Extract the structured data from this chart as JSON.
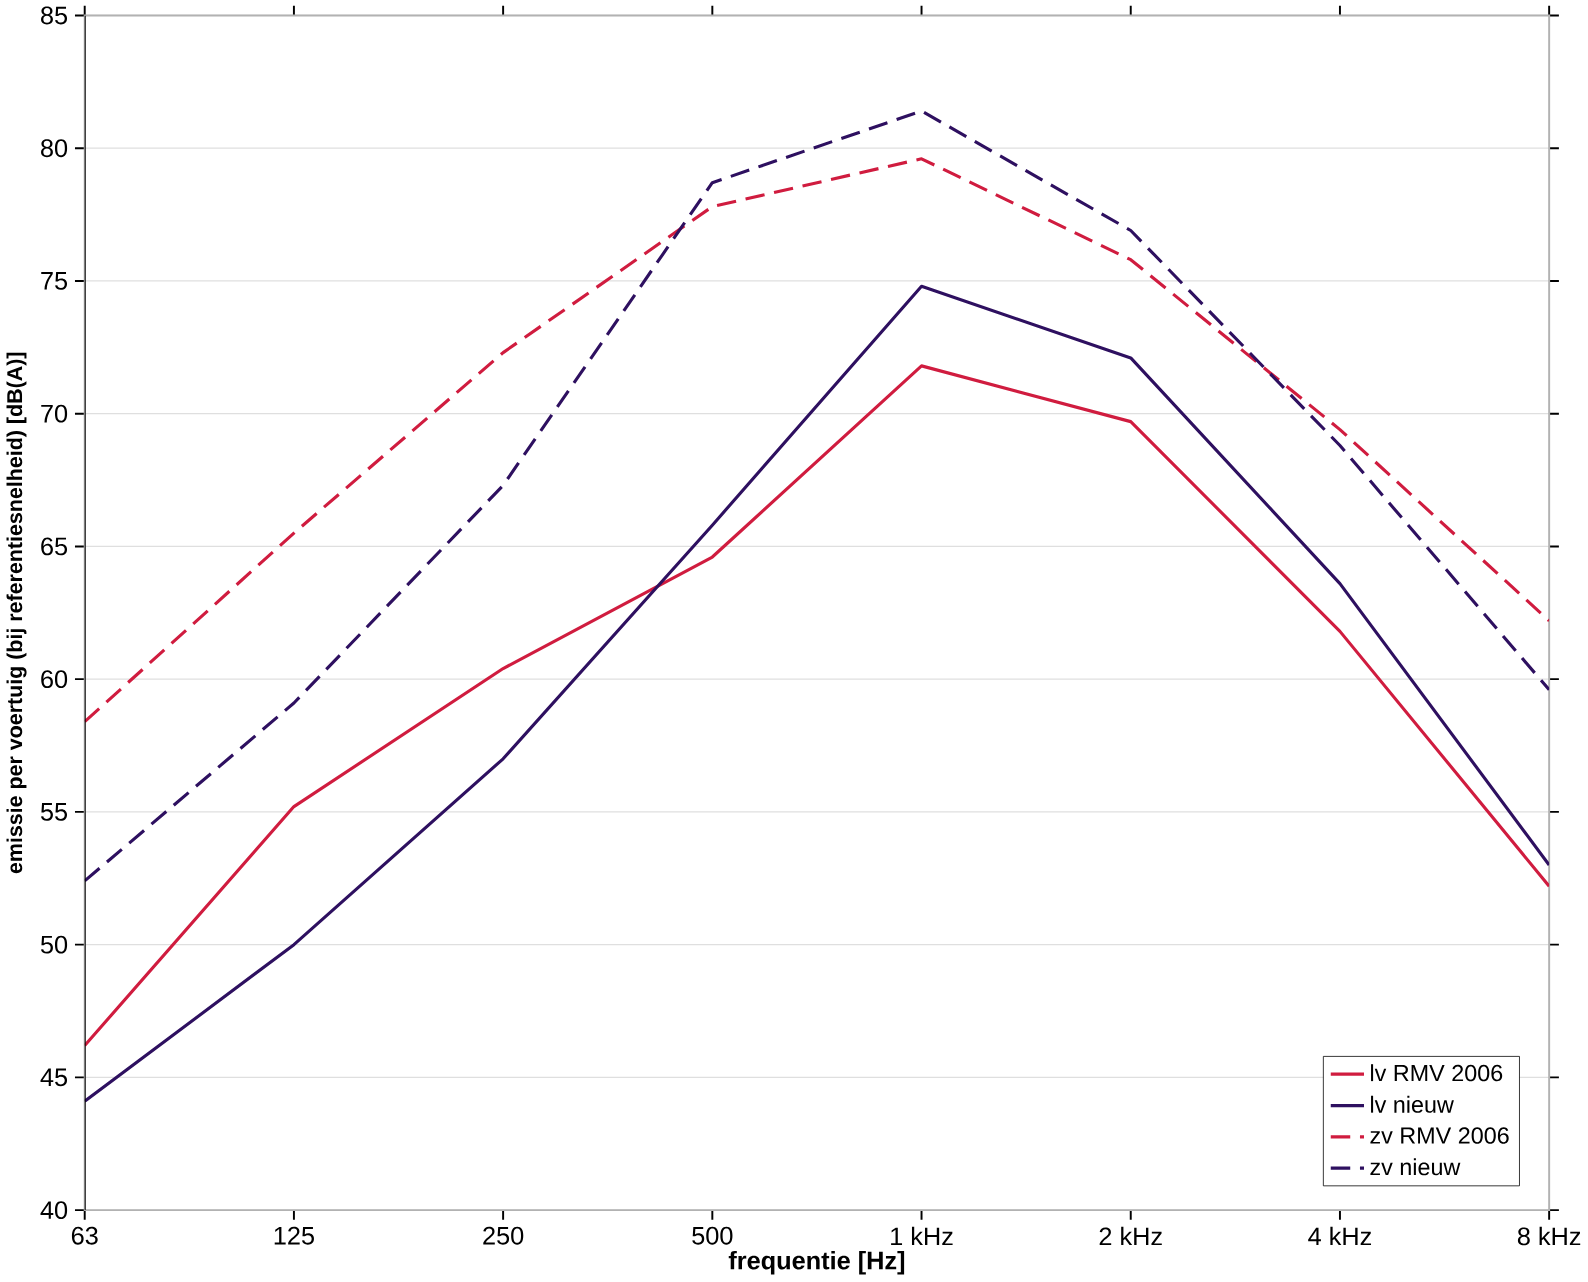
{
  "chart_data": {
    "type": "line",
    "xlabel": "frequentie [Hz]",
    "ylabel": "emissie per voertuig (bij referentiesnelheid) [dB(A)]",
    "categories": [
      "63",
      "125",
      "250",
      "500",
      "1 kHz",
      "2 kHz",
      "4 kHz",
      "8 kHz"
    ],
    "ylim": [
      40,
      85
    ],
    "yticks": [
      40,
      45,
      50,
      55,
      60,
      65,
      70,
      75,
      80,
      85
    ],
    "grid": "y",
    "legend": "bottom right",
    "marker": "none",
    "series": [
      {
        "name": "lv RMV 2006",
        "color": "#d01c3f",
        "line_style": "solid",
        "values": [
          46.2,
          55.2,
          60.4,
          64.6,
          71.8,
          69.7,
          61.8,
          52.2
        ]
      },
      {
        "name": "lv nieuw",
        "color": "#2e1060",
        "line_style": "solid",
        "values": [
          44.1,
          50.0,
          57.0,
          65.8,
          74.8,
          72.1,
          63.6,
          53.0
        ]
      },
      {
        "name": "zv RMV 2006",
        "color": "#d01c3f",
        "line_style": "dashed",
        "values": [
          58.4,
          65.5,
          72.3,
          77.8,
          79.6,
          75.8,
          69.4,
          62.2
        ]
      },
      {
        "name": "zv nieuw",
        "color": "#2e1060",
        "line_style": "dashed",
        "values": [
          52.4,
          59.1,
          67.3,
          78.7,
          81.4,
          76.9,
          68.8,
          59.6
        ]
      }
    ]
  }
}
